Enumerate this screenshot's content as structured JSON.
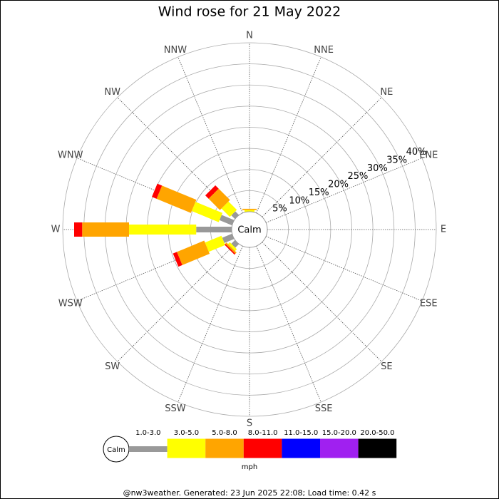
{
  "chart_data": {
    "type": "windrose",
    "title": "Wind rose for 21 May 2022",
    "calm_label": "Calm",
    "unit_label": "mph",
    "footer": "@nw3weather.  Generated: 23 Jun 2025 22:08; Load time: 0.42 s",
    "categories": [
      "N",
      "NNE",
      "NE",
      "ENE",
      "E",
      "ESE",
      "SE",
      "SSE",
      "S",
      "SSW",
      "SW",
      "WSW",
      "W",
      "WNW",
      "NW",
      "NNW"
    ],
    "rlim": [
      0,
      40
    ],
    "rticks": [
      {
        "value": 5,
        "label": "5%"
      },
      {
        "value": 10,
        "label": "10%"
      },
      {
        "value": 15,
        "label": "15%"
      },
      {
        "value": 20,
        "label": "20%"
      },
      {
        "value": 25,
        "label": "25%"
      },
      {
        "value": 30,
        "label": "30%"
      },
      {
        "value": 35,
        "label": "35%"
      },
      {
        "value": 40,
        "label": "40%"
      }
    ],
    "series": [
      {
        "name": "1.0-3.0",
        "color": "#999999",
        "values": [
          0,
          0,
          0,
          0,
          0,
          0,
          0,
          0,
          0,
          0,
          1.2,
          2.5,
          8.4,
          3.2,
          1.2,
          0
        ]
      },
      {
        "name": "3.0-5.0",
        "color": "#ffff00",
        "values": [
          0.4,
          0,
          0,
          0,
          0,
          0,
          0,
          0,
          0,
          0,
          0.6,
          4.2,
          15.9,
          6.9,
          2.8,
          0
        ]
      },
      {
        "name": "5.0-8.0",
        "color": "#ffa500",
        "values": [
          0.3,
          0,
          0,
          0,
          0,
          0,
          0,
          0,
          0,
          0,
          0.4,
          7.0,
          11.1,
          8.8,
          3.8,
          0
        ]
      },
      {
        "name": "8.0-11.0",
        "color": "#ff0000",
        "values": [
          0,
          0,
          0,
          0,
          0,
          0,
          0,
          0,
          0,
          0,
          0.3,
          1.0,
          1.9,
          1.2,
          1.1,
          0
        ]
      },
      {
        "name": "11.0-15.0",
        "color": "#0000ff",
        "values": [
          0,
          0,
          0,
          0,
          0,
          0,
          0,
          0,
          0,
          0,
          0,
          0,
          0,
          0,
          0,
          0
        ]
      },
      {
        "name": "15.0-20.0",
        "color": "#a020f0",
        "values": [
          0,
          0,
          0,
          0,
          0,
          0,
          0,
          0,
          0,
          0,
          0,
          0,
          0,
          0,
          0,
          0
        ]
      },
      {
        "name": "20.0-50.0",
        "color": "#000000",
        "values": [
          0,
          0,
          0,
          0,
          0,
          0,
          0,
          0,
          0,
          0,
          0,
          0,
          0,
          0,
          0,
          0
        ]
      }
    ]
  }
}
